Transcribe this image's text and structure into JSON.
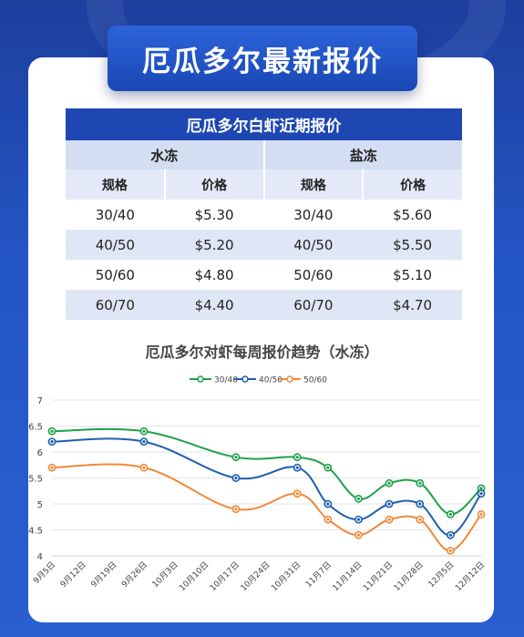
{
  "header": {
    "title": "厄瓜多尔最新报价"
  },
  "table": {
    "title": "厄瓜多尔白虾近期报价",
    "groups": [
      "水冻",
      "盐冻"
    ],
    "col_headers": [
      "规格",
      "价格",
      "规格",
      "价格"
    ],
    "rows": [
      [
        "30/40",
        "$5.30",
        "30/40",
        "$5.60"
      ],
      [
        "40/50",
        "$5.20",
        "40/50",
        "$5.50"
      ],
      [
        "50/60",
        "$4.80",
        "50/60",
        "$5.10"
      ],
      [
        "60/70",
        "$4.40",
        "60/70",
        "$4.70"
      ]
    ]
  },
  "chart_data": {
    "type": "line",
    "title": "厄瓜多尔对虾每周报价趋势（水冻）",
    "categories": [
      "9月5日",
      "9月12日",
      "9月19日",
      "9月26日",
      "10月3日",
      "10月10日",
      "10月17日",
      "10月24日",
      "10月31日",
      "11月7日",
      "11月14日",
      "11月21日",
      "11月28日",
      "12月5日",
      "12月12日"
    ],
    "marked_indices": [
      0,
      3,
      6,
      8,
      9,
      10,
      11,
      12,
      13,
      14
    ],
    "ylim": [
      4,
      7
    ],
    "yticks": [
      4,
      4.5,
      5,
      5.5,
      6,
      6.5,
      7
    ],
    "ytick_labels": [
      "4",
      "4.5",
      "5",
      "5.5",
      "6",
      "6.5",
      "7"
    ],
    "legend_position": "top-center",
    "grid": true,
    "series": [
      {
        "name": "30/40",
        "color": "#1fa04a",
        "values": [
          6.4,
          null,
          null,
          6.4,
          null,
          null,
          5.9,
          null,
          5.9,
          5.7,
          5.1,
          5.4,
          5.4,
          4.8,
          5.3
        ]
      },
      {
        "name": "40/50",
        "color": "#1f5fae",
        "values": [
          6.2,
          null,
          null,
          6.2,
          null,
          null,
          5.5,
          null,
          5.7,
          5.0,
          4.7,
          5.0,
          5.0,
          4.4,
          5.2
        ]
      },
      {
        "name": "50/60",
        "color": "#ef8a3a",
        "values": [
          5.7,
          null,
          null,
          5.7,
          null,
          null,
          4.9,
          null,
          5.2,
          4.7,
          4.4,
          4.7,
          4.7,
          4.1,
          4.8
        ]
      }
    ]
  }
}
